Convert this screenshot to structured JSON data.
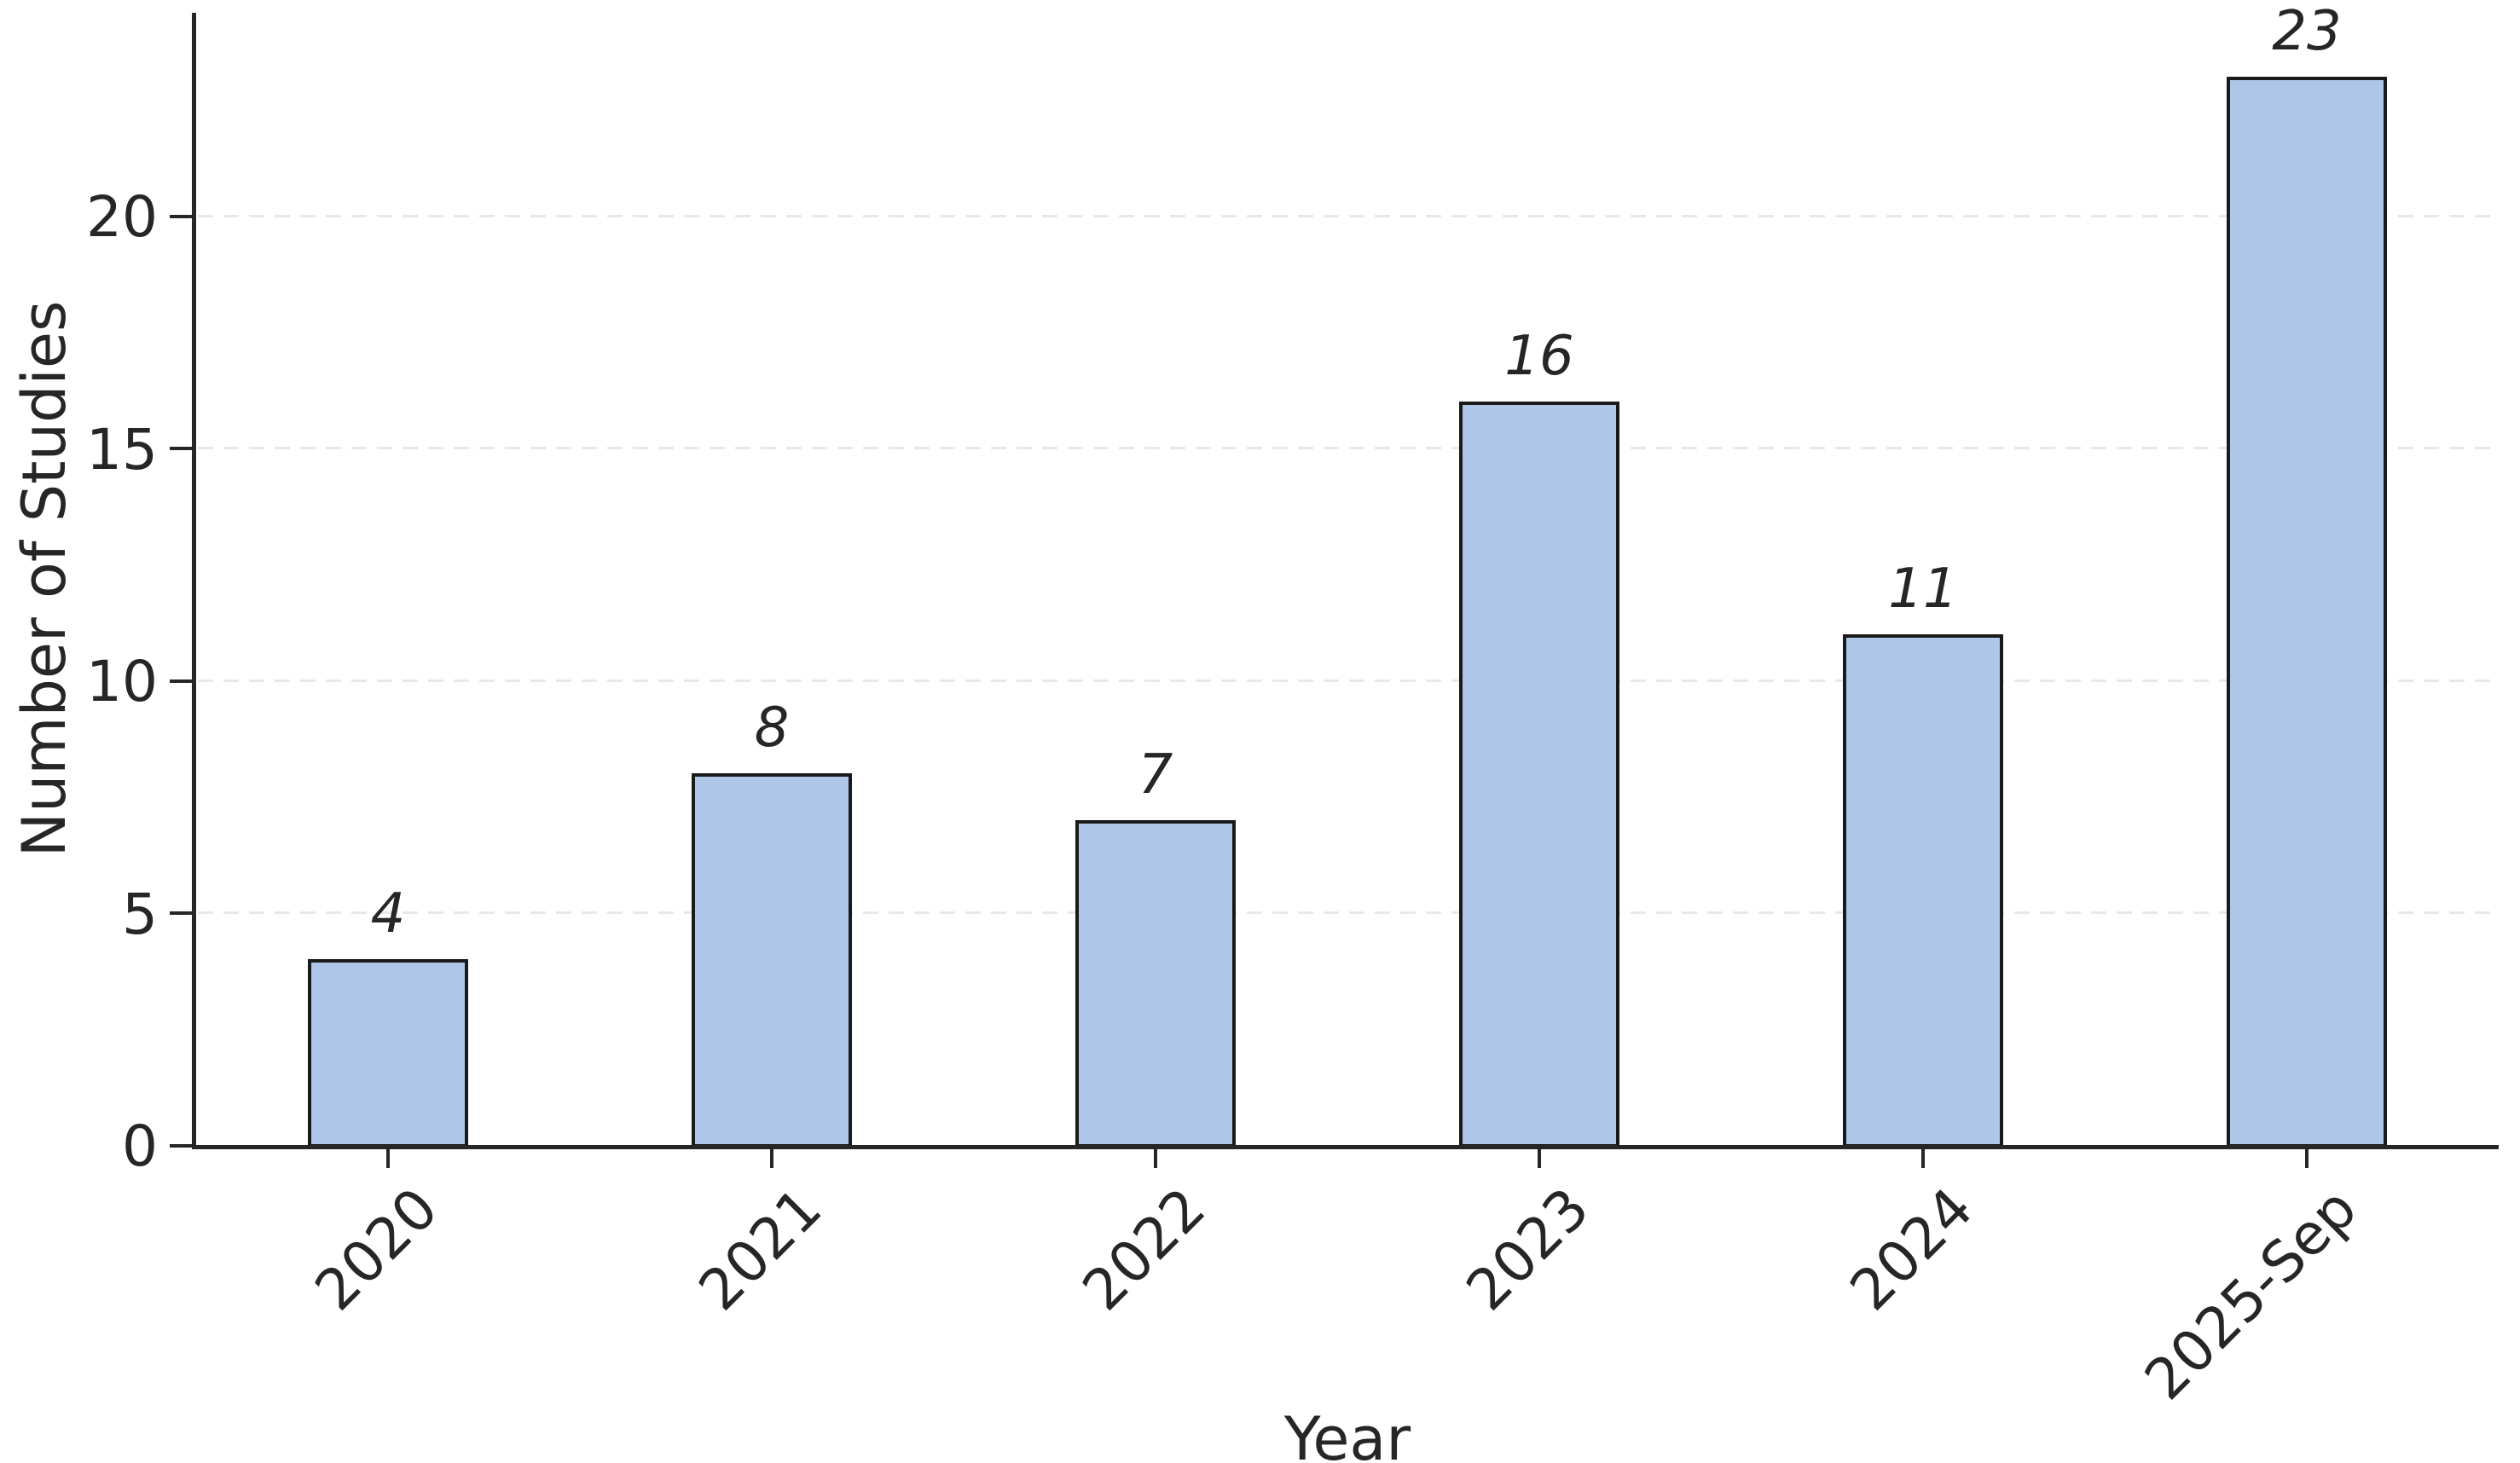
{
  "chart_data": {
    "type": "bar",
    "title": "",
    "xlabel": "Year",
    "ylabel": "Number of Studies",
    "categories": [
      "2020",
      "2021",
      "2022",
      "2023",
      "2024",
      "2025-Sep"
    ],
    "values": [
      4,
      8,
      7,
      16,
      11,
      23
    ],
    "bar_labels": [
      "4",
      "8",
      "7",
      "16",
      "11",
      "23"
    ],
    "yticks": [
      0,
      5,
      10,
      15,
      20
    ],
    "ylim": [
      0,
      24.4
    ],
    "grid": "horizontal-dashed",
    "grid_levels": [
      5,
      10,
      15,
      20
    ],
    "legend_position": "none",
    "bar_label_style": "italic",
    "colors": {
      "bar_fill": "#aec7e8",
      "bar_edge": "#1a1a1a",
      "axis": "#262626",
      "grid": "#e8e8e8",
      "text": "#262626"
    }
  }
}
